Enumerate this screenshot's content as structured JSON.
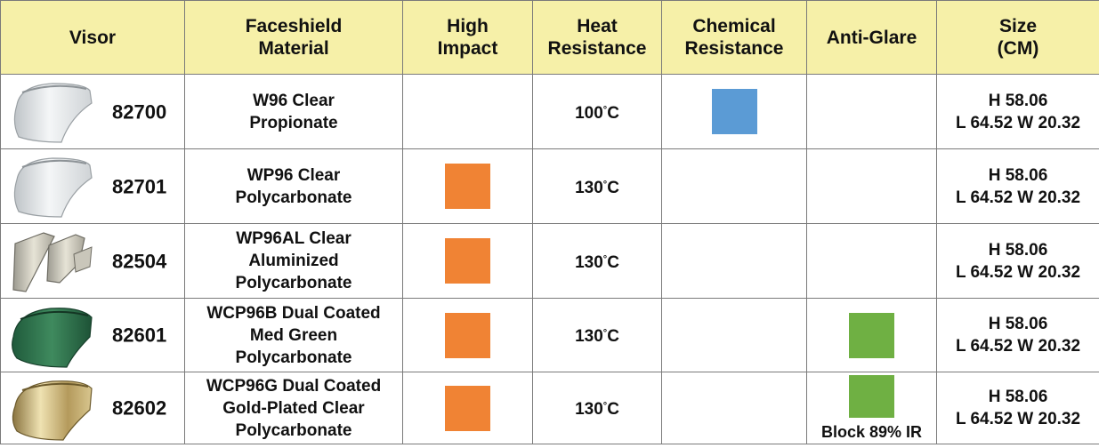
{
  "headers": {
    "visor": "Visor",
    "material": "Faceshield\nMaterial",
    "impact": "High\nImpact",
    "heat": "Heat\nResistance",
    "chemical": "Chemical\nResistance",
    "antiglare": "Anti-Glare",
    "size": "Size\n(CM)"
  },
  "rows": [
    {
      "code": "82700",
      "material_lines": [
        "W96 Clear",
        "Propionate"
      ],
      "high_impact": false,
      "heat_value": "100",
      "heat_unit": "C",
      "chemical": true,
      "anti_glare": false,
      "anti_glare_note": "",
      "size_h": "H 58.06",
      "size_lw": "L 64.52 W 20.32",
      "visor_image": "clear-visor-image"
    },
    {
      "code": "82701",
      "material_lines": [
        "WP96 Clear",
        "Polycarbonate"
      ],
      "high_impact": true,
      "heat_value": "130",
      "heat_unit": "C",
      "chemical": false,
      "anti_glare": false,
      "anti_glare_note": "",
      "size_h": "H 58.06",
      "size_lw": "L 64.52 W 20.32",
      "visor_image": "clear-visor-image"
    },
    {
      "code": "82504",
      "material_lines": [
        "WP96AL Clear",
        "Aluminized",
        "Polycarbonate"
      ],
      "high_impact": true,
      "heat_value": "130",
      "heat_unit": "C",
      "chemical": false,
      "anti_glare": false,
      "anti_glare_note": "",
      "size_h": "H 58.06",
      "size_lw": "L 64.52 W 20.32",
      "visor_image": "aluminized-visor-image"
    },
    {
      "code": "82601",
      "material_lines": [
        "WCP96B Dual Coated",
        "Med Green",
        "Polycarbonate"
      ],
      "high_impact": true,
      "heat_value": "130",
      "heat_unit": "C",
      "chemical": false,
      "anti_glare": true,
      "anti_glare_note": "",
      "size_h": "H 58.06",
      "size_lw": "L 64.52 W 20.32",
      "visor_image": "green-visor-image"
    },
    {
      "code": "82602",
      "material_lines": [
        "WCP96G Dual Coated",
        "Gold-Plated Clear",
        "Polycarbonate"
      ],
      "high_impact": true,
      "heat_value": "130",
      "heat_unit": "C",
      "chemical": false,
      "anti_glare": true,
      "anti_glare_note": "Block 89% IR",
      "size_h": "H 58.06",
      "size_lw": "L 64.52 W 20.32",
      "visor_image": "gold-visor-image"
    }
  ],
  "colors": {
    "header_bg": "#f6f0a8",
    "high_impact": "#f08334",
    "chemical": "#5b9bd5",
    "anti_glare": "#6fb043",
    "border": "#7a7a7a"
  }
}
